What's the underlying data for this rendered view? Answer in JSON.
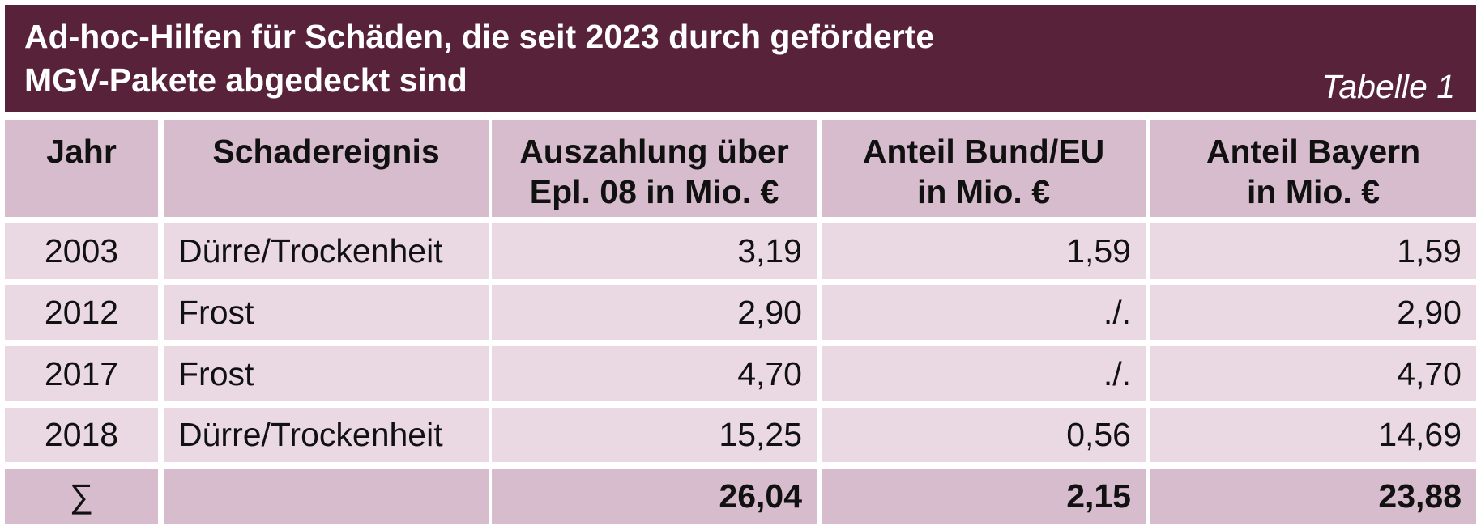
{
  "header": {
    "title": [
      "Ad-hoc-Hilfen für Schäden, die seit 2023 durch geförderte",
      "MGV-Pakete abgedeckt sind"
    ],
    "label": "Tabelle 1"
  },
  "table": {
    "columns": [
      [
        "Jahr"
      ],
      [
        "Schadereignis"
      ],
      [
        "Auszahlung über",
        "Epl. 08 in Mio. €"
      ],
      [
        "Anteil Bund/EU",
        "in Mio. €"
      ],
      [
        "Anteil Bayern",
        "in Mio. €"
      ]
    ],
    "rows": [
      [
        "2003",
        "Dürre/Trockenheit",
        "3,19",
        "1,59",
        "1,59"
      ],
      [
        "2012",
        "Frost",
        "2,90",
        "./.",
        "2,90"
      ],
      [
        "2017",
        "Frost",
        "4,70",
        "./.",
        "4,70"
      ],
      [
        "2018",
        "Dürre/Trockenheit",
        "15,25",
        "0,56",
        "14,69"
      ]
    ],
    "total": {
      "label": "∑",
      "values": [
        "26,04",
        "2,15",
        "23,88"
      ]
    }
  }
}
